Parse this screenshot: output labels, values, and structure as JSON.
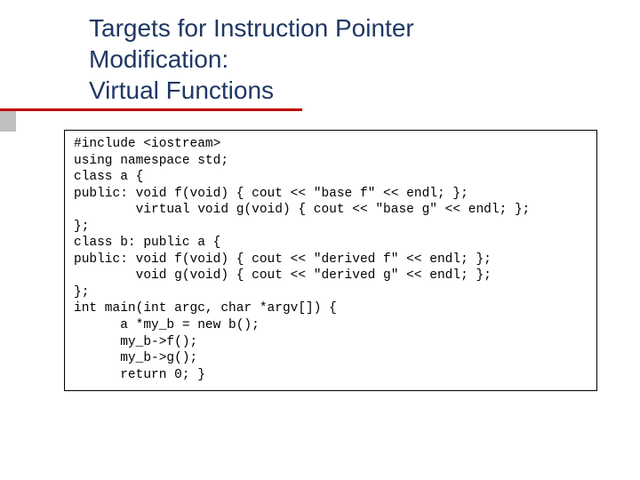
{
  "colors": {
    "title_color": "#1f3864",
    "underline_color": "#c00000",
    "side_accent": "#bfbfbf",
    "code_text": "#000000",
    "code_border": "#000000",
    "background": "#ffffff"
  },
  "typography": {
    "title_fontsize": 28,
    "title_family": "Tahoma, Arial, sans-serif",
    "code_fontsize": 14.5,
    "code_family": "Courier New, monospace"
  },
  "title": {
    "line1": "Targets for Instruction Pointer",
    "line2": "Modification:",
    "line3": "Virtual Functions"
  },
  "code": {
    "lines": [
      "#include <iostream>",
      "using namespace std;",
      "",
      "class a {",
      "public: void f(void) { cout << \"base f\" << endl; };",
      "        virtual void g(void) { cout << \"base g\" << endl; };",
      "};",
      "",
      "class b: public a {",
      "public: void f(void) { cout << \"derived f\" << endl; };",
      "        void g(void) { cout << \"derived g\" << endl; };",
      "};",
      "",
      "int main(int argc, char *argv[]) {",
      "      a *my_b = new b();",
      "      my_b->f();",
      "      my_b->g();",
      "      return 0; }"
    ]
  }
}
